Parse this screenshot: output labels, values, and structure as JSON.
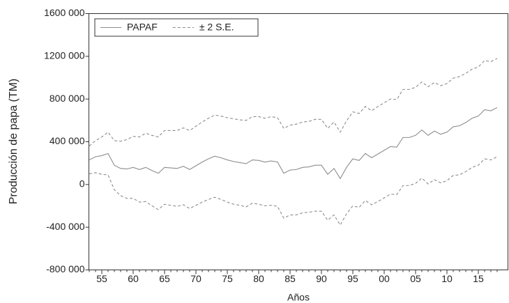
{
  "chart_data": {
    "type": "line",
    "y_label": "Producción de papa (TM)",
    "x_label": "Años",
    "categories": [
      null,
      null,
      "55",
      null,
      null,
      null,
      null,
      "60",
      null,
      null,
      null,
      null,
      "65",
      null,
      null,
      null,
      null,
      "70",
      null,
      null,
      null,
      null,
      "75",
      null,
      null,
      null,
      null,
      "80",
      null,
      null,
      null,
      null,
      "85",
      null,
      null,
      null,
      null,
      "90",
      null,
      null,
      null,
      null,
      "95",
      null,
      null,
      null,
      null,
      "00",
      null,
      null,
      null,
      null,
      "05",
      null,
      null,
      null,
      null,
      "10",
      null,
      null,
      null,
      null,
      "15",
      null,
      null,
      null
    ],
    "series": [
      {
        "name": "PAPAF",
        "color": "#8c8c8c",
        "dash": "solid",
        "values": [
          230000,
          260000,
          270000,
          290000,
          180000,
          150000,
          145000,
          160000,
          140000,
          160000,
          130000,
          105000,
          160000,
          155000,
          150000,
          170000,
          140000,
          175000,
          210000,
          240000,
          265000,
          250000,
          230000,
          215000,
          205000,
          195000,
          230000,
          225000,
          210000,
          220000,
          210000,
          105000,
          135000,
          140000,
          160000,
          165000,
          180000,
          180000,
          95000,
          150000,
          55000,
          160000,
          240000,
          225000,
          290000,
          250000,
          285000,
          320000,
          355000,
          350000,
          440000,
          440000,
          460000,
          510000,
          460000,
          500000,
          470000,
          490000,
          540000,
          550000,
          580000,
          620000,
          640000,
          700000,
          690000,
          720000
        ]
      },
      {
        "name": "± 2 S.E.",
        "color": "#8c8c8c",
        "dash": "dashed",
        "values": [
          360000,
          410000,
          445000,
          490000,
          410000,
          405000,
          420000,
          450000,
          445000,
          480000,
          460000,
          445000,
          505000,
          505000,
          505000,
          530000,
          505000,
          545000,
          585000,
          620000,
          650000,
          640000,
          625000,
          615000,
          605000,
          600000,
          635000,
          635000,
          620000,
          635000,
          625000,
          525000,
          555000,
          565000,
          585000,
          590000,
          610000,
          610000,
          525000,
          585000,
          490000,
          595000,
          680000,
          665000,
          730000,
          690000,
          730000,
          765000,
          800000,
          795000,
          890000,
          890000,
          910000,
          960000,
          915000,
          955000,
          925000,
          945000,
          995000,
          1010000,
          1040000,
          1080000,
          1100000,
          1160000,
          1150000,
          1180000
        ],
        "lower": [
          100000,
          110000,
          95000,
          90000,
          -50000,
          -105000,
          -130000,
          -130000,
          -165000,
          -160000,
          -200000,
          -235000,
          -185000,
          -195000,
          -205000,
          -190000,
          -225000,
          -195000,
          -165000,
          -140000,
          -120000,
          -140000,
          -165000,
          -185000,
          -195000,
          -210000,
          -175000,
          -185000,
          -200000,
          -195000,
          -205000,
          -315000,
          -285000,
          -285000,
          -265000,
          -260000,
          -250000,
          -250000,
          -335000,
          -285000,
          -380000,
          -275000,
          -200000,
          -215000,
          -150000,
          -190000,
          -160000,
          -125000,
          -90000,
          -95000,
          -10000,
          -10000,
          10000,
          60000,
          5000,
          45000,
          15000,
          35000,
          85000,
          90000,
          120000,
          160000,
          180000,
          240000,
          230000,
          260000
        ]
      }
    ],
    "ylim": [
      -800000,
      1600000
    ],
    "yticks": [
      {
        "value": -800000,
        "label": "-800 000"
      },
      {
        "value": -400000,
        "label": "-400 000"
      },
      0,
      {
        "value": 400000,
        "label": "400 000"
      },
      {
        "value": 800000,
        "label": "800 000"
      },
      {
        "value": 1200000,
        "label": "1200 000"
      },
      {
        "value": 1600000,
        "label": "1600 000"
      }
    ],
    "legend": "top-left"
  }
}
